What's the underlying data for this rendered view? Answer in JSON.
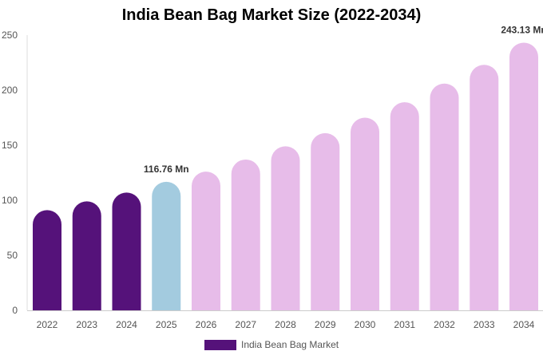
{
  "chart_data": {
    "type": "bar",
    "title": "India Bean Bag Market Size (2022-2034)",
    "xlabel": "",
    "ylabel": "",
    "categories": [
      "2022",
      "2023",
      "2024",
      "2025",
      "2026",
      "2027",
      "2028",
      "2029",
      "2030",
      "2031",
      "2032",
      "2033",
      "2034"
    ],
    "series": [
      {
        "name": "India Bean Bag Market",
        "values": [
          91,
          99,
          107,
          116.76,
          126,
          137,
          149,
          161,
          175,
          189,
          206,
          223,
          243.13
        ]
      }
    ],
    "ylim": [
      0,
      250
    ],
    "yticks": [
      0,
      50,
      100,
      150,
      200,
      250
    ],
    "data_labels": [
      {
        "category": "2025",
        "text": "116.76 Mn"
      },
      {
        "category": "2034",
        "text": "243.13 Mn"
      }
    ],
    "colors": {
      "historical": "#55127a",
      "base_year": "#a3cbdf",
      "forecast": "#e7bce9",
      "axis": "#cccccc"
    },
    "grid": false,
    "legend_position": "bottom"
  }
}
